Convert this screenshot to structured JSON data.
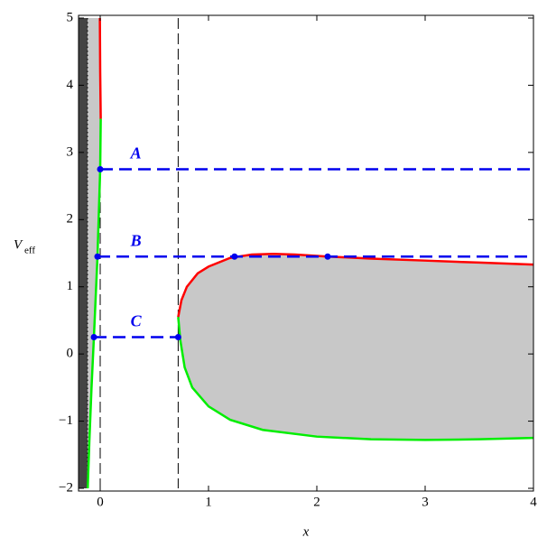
{
  "chart_data": {
    "type": "line",
    "xlabel": "x",
    "ylabel": "V",
    "ylabel_sub": "eff",
    "xlim": [
      -0.2,
      4
    ],
    "ylim": [
      -2,
      5
    ],
    "xticks": [
      0,
      1,
      2,
      3,
      4
    ],
    "yticks": [
      {
        "value": -2,
        "label": "−2"
      },
      {
        "value": -1,
        "label": "−1"
      },
      0,
      1,
      2,
      3,
      4,
      5
    ],
    "band": {
      "x": [
        -0.2,
        -0.117
      ],
      "color": "#444444"
    },
    "vlines": [
      {
        "x": -0.117,
        "style": "dotted"
      },
      {
        "x": 0,
        "style": "dashed"
      },
      {
        "x": 0.72,
        "style": "dashed"
      }
    ],
    "fill_color": "#c8c8c8",
    "left_curves": [
      {
        "color": "#ff0000",
        "x": [
          -0.003,
          0.0,
          0.005
        ],
        "y": [
          5,
          4.2,
          3.5
        ]
      },
      {
        "color": "#00ee00",
        "x": [
          0.005,
          0.0,
          -0.025,
          -0.058,
          -0.08,
          -0.1,
          -0.115
        ],
        "y": [
          3.5,
          2.75,
          1.45,
          0.25,
          -0.5,
          -1.3,
          -2
        ]
      }
    ],
    "right_curves": [
      {
        "color": "#ff0000",
        "x": [
          0.72,
          0.75,
          0.8,
          0.9,
          1.0,
          1.2,
          1.4,
          1.6,
          1.8,
          2.1,
          2.5,
          3,
          3.5,
          4
        ],
        "y": [
          0.55,
          0.8,
          1.0,
          1.2,
          1.3,
          1.43,
          1.48,
          1.49,
          1.48,
          1.45,
          1.42,
          1.39,
          1.36,
          1.33
        ]
      },
      {
        "color": "#00ee00",
        "x": [
          0.72,
          0.74,
          0.78,
          0.85,
          1.0,
          1.2,
          1.5,
          2,
          2.5,
          3,
          3.5,
          4
        ],
        "y": [
          0.55,
          0.2,
          -0.2,
          -0.5,
          -0.78,
          -0.98,
          -1.13,
          -1.23,
          -1.27,
          -1.28,
          -1.27,
          -1.25
        ]
      }
    ],
    "level_color": "#0000ee",
    "levels": [
      {
        "label": "A",
        "y": 2.75,
        "x_start": 0,
        "x_end": 4,
        "label_x": 0.33,
        "points": [
          0
        ]
      },
      {
        "label": "B",
        "y": 1.45,
        "x_start": -0.025,
        "x_end": 4,
        "label_x": 0.33,
        "points": [
          -0.025,
          1.24,
          2.1
        ]
      },
      {
        "label": "C",
        "y": 0.25,
        "x_start": -0.058,
        "x_end": 0.72,
        "label_x": 0.33,
        "points": [
          -0.058,
          0.72
        ]
      }
    ]
  }
}
